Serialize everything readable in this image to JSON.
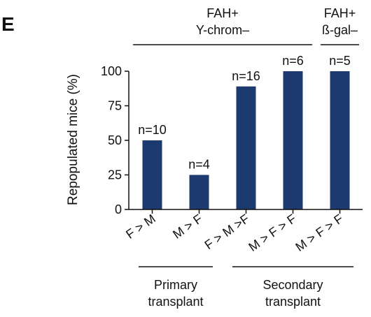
{
  "panel_label": "E",
  "chart_data": {
    "type": "bar",
    "categories": [
      "F > M",
      "M > F",
      "F > M >F",
      "M > F > F",
      "M > F > F"
    ],
    "values": [
      50,
      25,
      89,
      100,
      100
    ],
    "n_labels": [
      "n=10",
      "n=4",
      "n=16",
      "n=6",
      "n=5"
    ],
    "ylabel": "Repopulated mice (%)",
    "ylim": [
      0,
      100
    ],
    "yticks": [
      0,
      25,
      50,
      75,
      100
    ],
    "ytick_labels": [
      "0",
      "25",
      "50",
      "75",
      "100"
    ],
    "bar_color": "#1c3a6e",
    "grid": false,
    "top_groups": [
      {
        "lines": [
          "FAH+",
          "Y-chrom–"
        ],
        "categories": [
          0,
          3
        ]
      },
      {
        "lines": [
          "FAH+",
          "ß-gal–"
        ],
        "categories": [
          4,
          4
        ]
      }
    ],
    "bottom_groups": [
      {
        "lines": [
          "Primary",
          "transplant"
        ],
        "categories": [
          0,
          1
        ]
      },
      {
        "lines": [
          "Secondary",
          "transplant"
        ],
        "categories": [
          2,
          4
        ]
      }
    ]
  }
}
